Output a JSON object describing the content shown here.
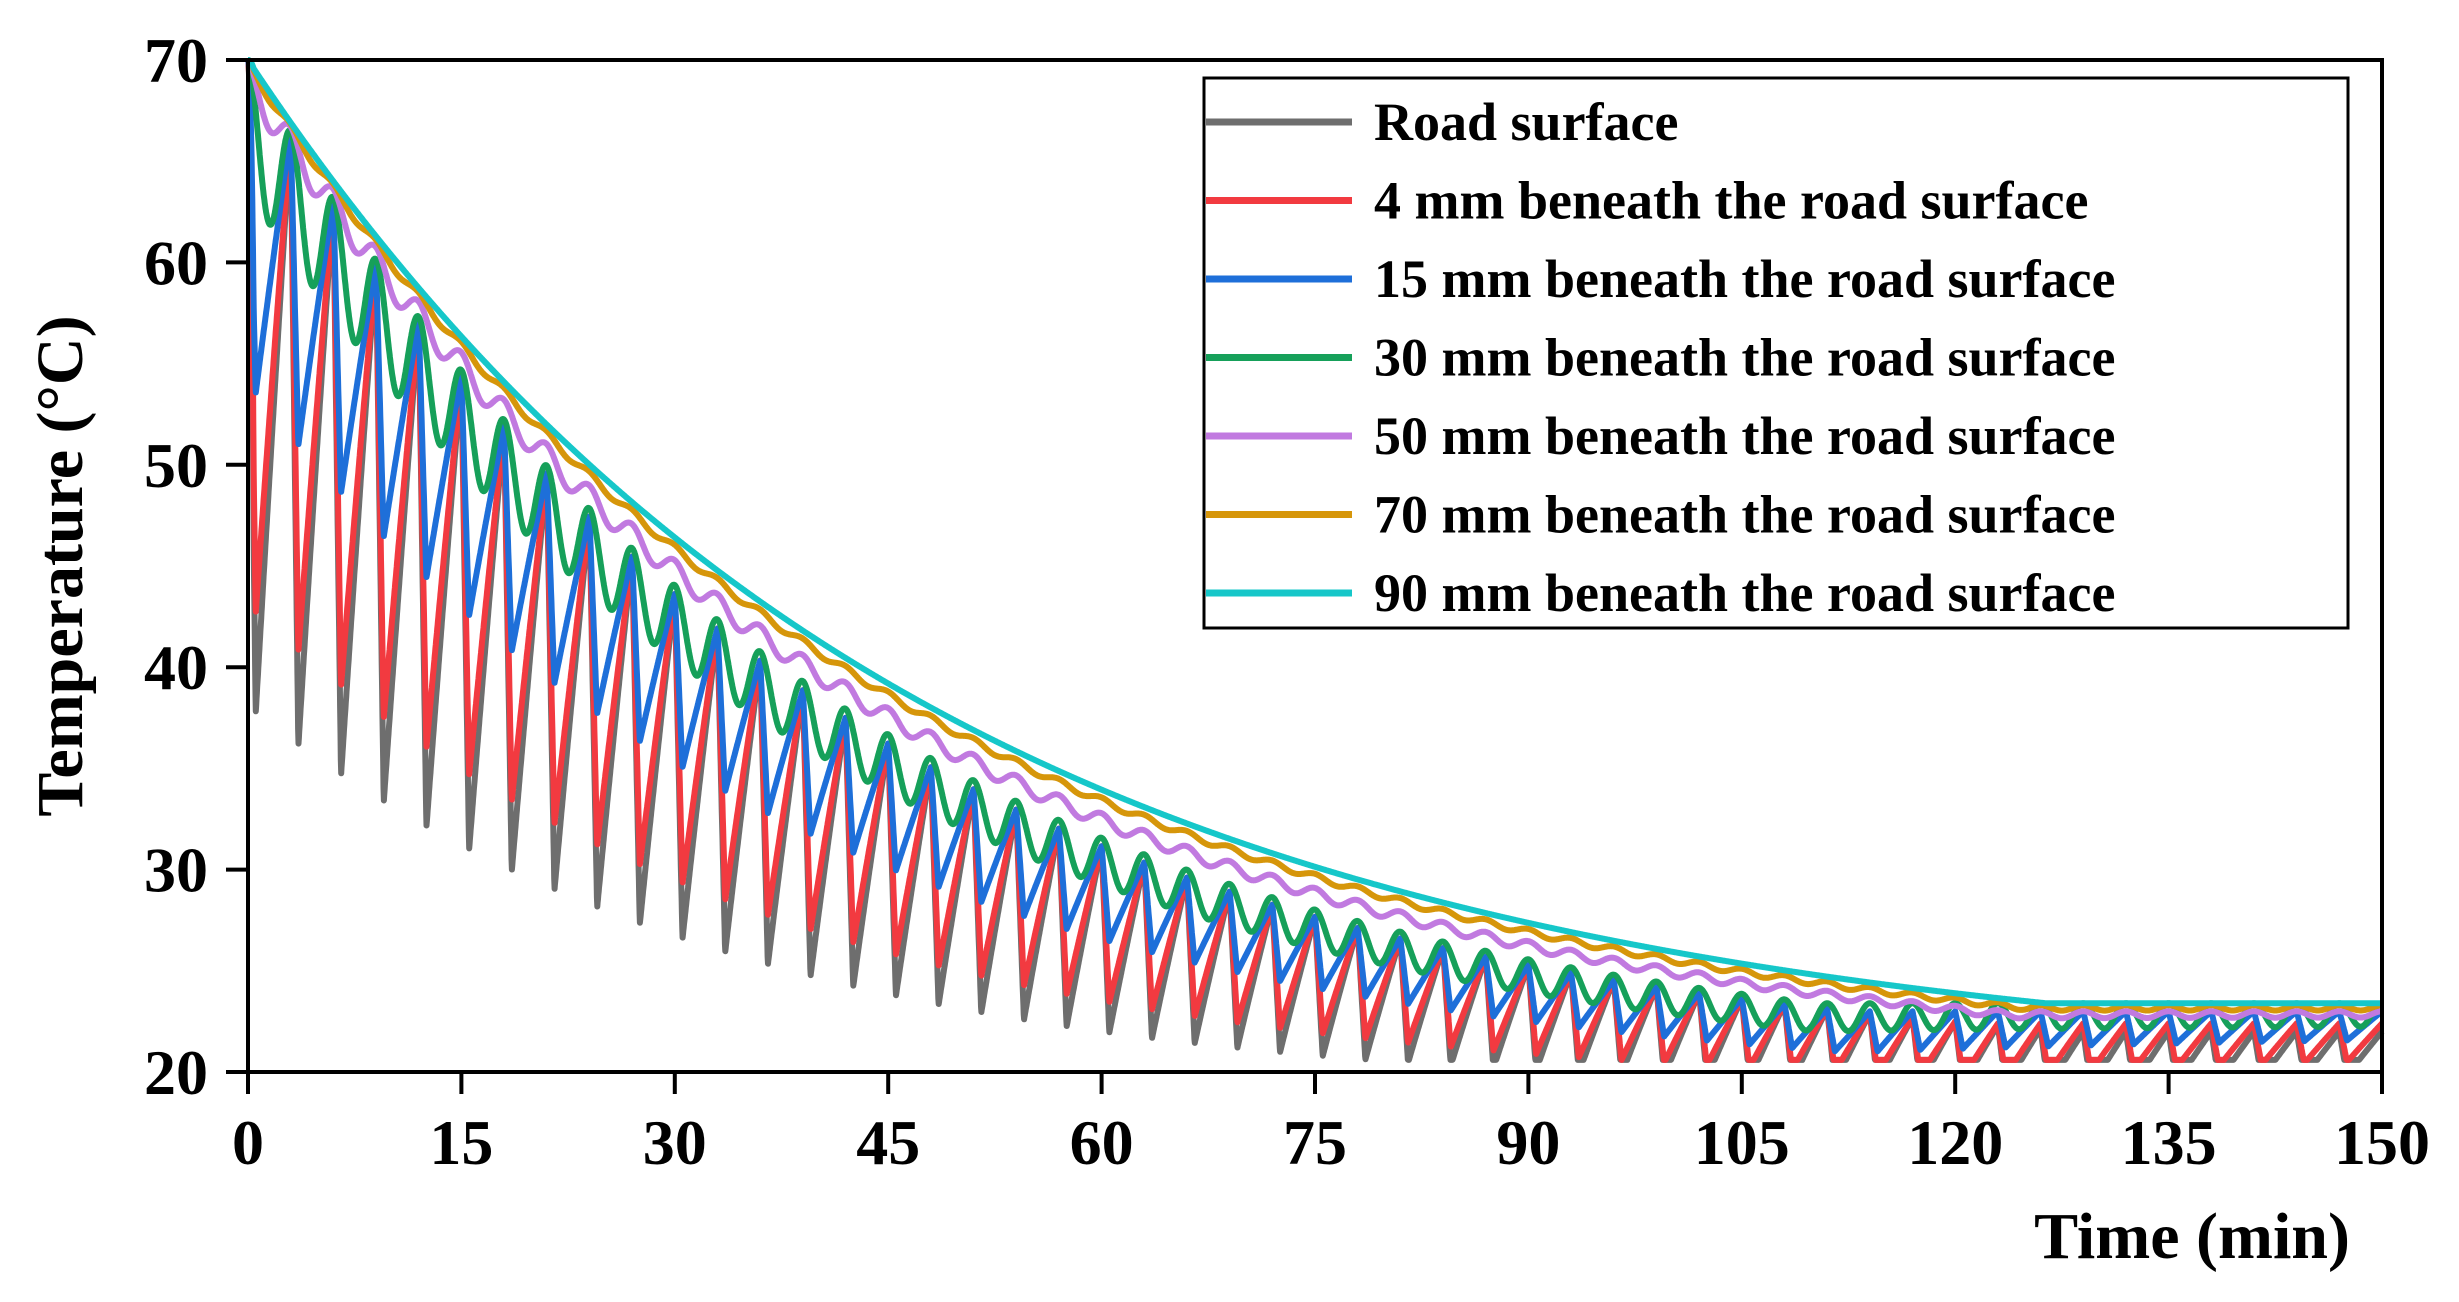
{
  "chart_data": {
    "type": "line",
    "title": "",
    "xlabel": "Time (min)",
    "ylabel": "Temperature (°C)",
    "xlim": [
      0,
      150
    ],
    "ylim": [
      20,
      70
    ],
    "xticks": [
      "0",
      "15",
      "30",
      "45",
      "60",
      "75",
      "90",
      "105",
      "120",
      "135",
      "150"
    ],
    "yticks": [
      "20",
      "30",
      "40",
      "50",
      "60",
      "70"
    ],
    "grid": false,
    "legend_position": "top-right",
    "ambient": 20,
    "heating_period_min": 3.0,
    "series": [
      {
        "name": "Road surface",
        "color": "#6e6e6e",
        "start": 70,
        "envelope_peak_tau": 40,
        "trough_depth_start": 31,
        "trough_tau": 45,
        "trough_end": 20.8,
        "wave": "sawtooth"
      },
      {
        "name": "4 mm beneath the road surface",
        "color": "#f23a40",
        "start": 70,
        "envelope_peak_tau": 40,
        "trough_depth_start": 26,
        "trough_tau": 44,
        "trough_end": 21.2,
        "wave": "sawtooth"
      },
      {
        "name": "15 mm beneath the road surface",
        "color": "#1e6fd9",
        "start": 70,
        "envelope_peak_tau": 40,
        "trough_depth_start": 15,
        "trough_tau": 42,
        "trough_end": 21.8,
        "wave": "sawtooth"
      },
      {
        "name": "30 mm beneath the road surface",
        "color": "#16a05a",
        "start": 70,
        "envelope_peak_tau": 41,
        "trough_depth_start": 5.5,
        "trough_tau": 42,
        "trough_end": 22.2,
        "wave": "smooth"
      },
      {
        "name": "50 mm beneath the road surface",
        "color": "#c17ae0",
        "start": 70,
        "envelope_peak_tau": 44,
        "trough_depth_start": 1.6,
        "trough_tau": 45,
        "trough_end": 22.7,
        "wave": "smooth"
      },
      {
        "name": "70 mm beneath the road surface",
        "color": "#d6960a",
        "start": 70,
        "envelope_peak_tau": 46,
        "trough_depth_start": 0.2,
        "trough_tau": 50,
        "trough_end": 23.0,
        "wave": "smooth"
      },
      {
        "name": "90 mm beneath the road surface",
        "color": "#16c7c9",
        "start": 70,
        "envelope_peak_tau": 47,
        "trough_depth_start": 0,
        "trough_tau": 50,
        "trough_end": 23.1,
        "wave": "none"
      }
    ]
  }
}
